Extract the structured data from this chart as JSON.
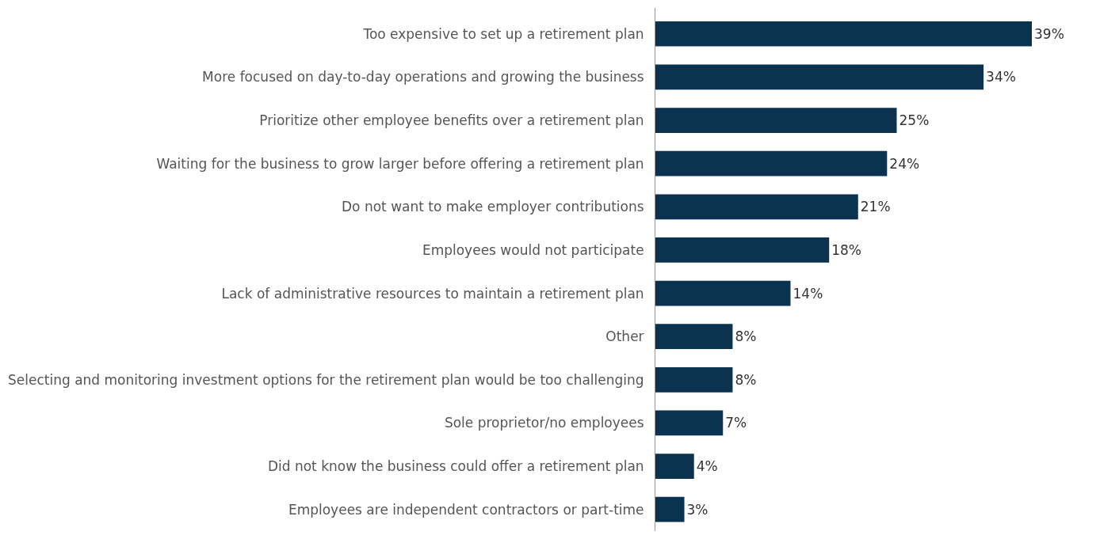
{
  "chart_data": {
    "type": "bar",
    "orientation": "horizontal",
    "categories": [
      "Too expensive to set up a retirement plan",
      "More focused on day-to-day operations and growing the business",
      "Prioritize other employee benefits over a retirement plan",
      "Waiting for the business to grow larger before offering a retirement plan",
      "Do not want to make employer contributions",
      "Employees would not participate",
      "Lack of administrative resources to maintain a retirement plan",
      "Other",
      "Selecting and monitoring investment options for the retirement plan would be too challenging",
      "Sole proprietor/no employees",
      "Did not know the business could offer a retirement plan",
      "Employees are independent contractors or part-time"
    ],
    "values": [
      39,
      34,
      25,
      24,
      21,
      18,
      14,
      8,
      8,
      7,
      4,
      3
    ],
    "value_labels": [
      "39%",
      "34%",
      "25%",
      "24%",
      "21%",
      "18%",
      "14%",
      "8%",
      "8%",
      "7%",
      "4%",
      "3%"
    ],
    "color": "#0b3350"
  }
}
